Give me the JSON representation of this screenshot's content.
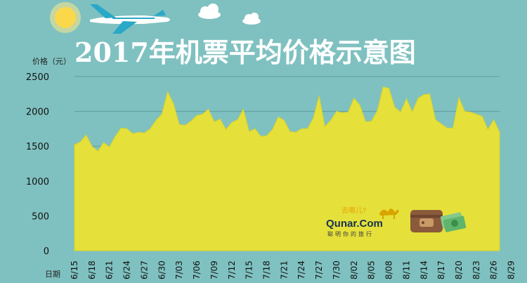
{
  "chart_data": {
    "type": "area",
    "title": "2017年机票平均价格示意图",
    "ylabel": "价格（元）",
    "xlabel": "日期",
    "ylim": [
      0,
      2500
    ],
    "yticks": [
      0,
      500,
      1000,
      1500,
      2000,
      2500
    ],
    "grid": true,
    "color": "#e5e03a",
    "x_ticks": [
      "6/15",
      "6/18",
      "6/21",
      "6/24",
      "6/27",
      "6/30",
      "7/03",
      "7/06",
      "7/09",
      "7/12",
      "7/15",
      "7/18",
      "7/21",
      "7/24",
      "7/27",
      "7/30",
      "8/02",
      "8/05",
      "8/08",
      "8/11",
      "8/14",
      "8/17",
      "8/20",
      "8/23",
      "8/26",
      "8/29"
    ],
    "series": [
      {
        "values": [
          1520,
          1560,
          1660,
          1500,
          1430,
          1550,
          1490,
          1640,
          1760,
          1750,
          1680,
          1700,
          1690,
          1750,
          1870,
          1960,
          2280,
          2110,
          1810,
          1800,
          1860,
          1940,
          1960,
          2030,
          1850,
          1890,
          1740,
          1840,
          1880,
          2030,
          1710,
          1750,
          1640,
          1650,
          1740,
          1920,
          1870,
          1710,
          1700,
          1750,
          1750,
          1900,
          2220,
          1780,
          1870,
          2000,
          1980,
          1990,
          2190,
          2090,
          1850,
          1860,
          2010,
          2350,
          2330,
          2060,
          1990,
          2180,
          1990,
          2190,
          2240,
          2250,
          1880,
          1820,
          1760,
          1760,
          2200,
          2000,
          1990,
          1960,
          1930,
          1740,
          1880,
          1700
        ]
      }
    ]
  },
  "brand": {
    "name": "Qunar.Com",
    "slogan_cn": "去哪儿?",
    "tagline": "聪明你的旅行"
  },
  "icons": [
    "sun-icon",
    "airplane-icon",
    "cloud-icon",
    "wallet-icon",
    "cash-icon",
    "camel-icon"
  ]
}
